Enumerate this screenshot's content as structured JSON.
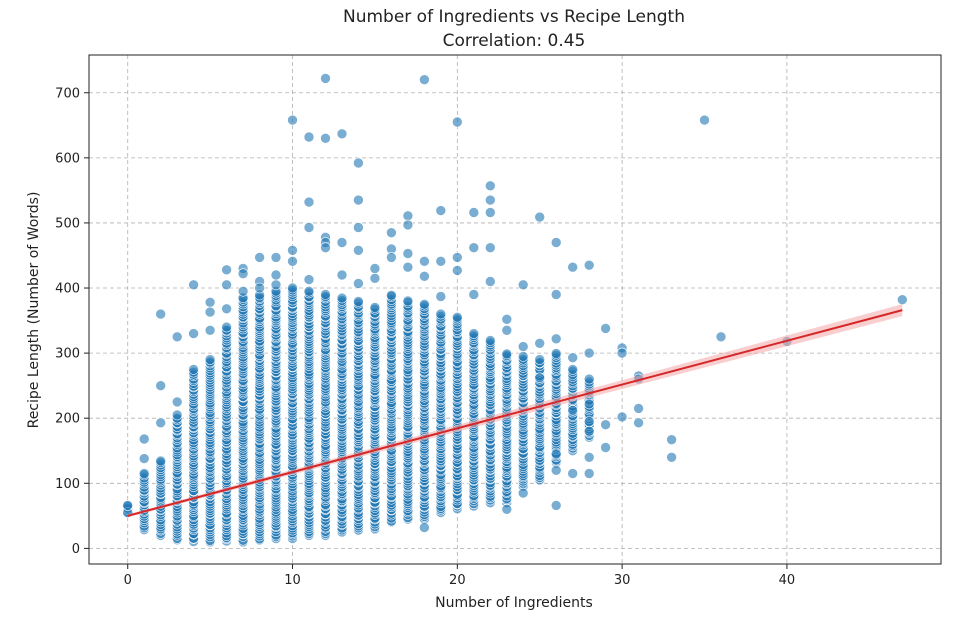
{
  "chart_data": {
    "type": "scatter",
    "title": "Number of Ingredients vs Recipe Length",
    "subtitle": "Correlation: 0.45",
    "xlabel": "Number of Ingredients",
    "ylabel": "Recipe Length (Number of Words)",
    "xlim": [
      -2.35,
      49.35
    ],
    "ylim": [
      -24,
      758
    ],
    "x_ticks": [
      0,
      10,
      20,
      30,
      40
    ],
    "y_ticks": [
      0,
      100,
      200,
      300,
      400,
      500,
      600,
      700
    ],
    "grid": true,
    "colors": {
      "points": "#1f77b4",
      "edge": "#ffffff",
      "trend": "#d62728",
      "band": "#f4a6a6",
      "grid": "#b0b0b0"
    },
    "trend_line": {
      "x": [
        0,
        47
      ],
      "y": [
        50,
        366
      ]
    },
    "dense_bands": [
      {
        "x": 0,
        "min": 55,
        "max": 66
      },
      {
        "x": 1,
        "min": 28,
        "max": 115
      },
      {
        "x": 2,
        "min": 20,
        "max": 135
      },
      {
        "x": 3,
        "min": 12,
        "max": 205
      },
      {
        "x": 4,
        "min": 10,
        "max": 275
      },
      {
        "x": 5,
        "min": 10,
        "max": 290
      },
      {
        "x": 6,
        "min": 10,
        "max": 340
      },
      {
        "x": 7,
        "min": 10,
        "max": 385
      },
      {
        "x": 8,
        "min": 12,
        "max": 390
      },
      {
        "x": 9,
        "min": 15,
        "max": 395
      },
      {
        "x": 10,
        "min": 15,
        "max": 400
      },
      {
        "x": 11,
        "min": 20,
        "max": 395
      },
      {
        "x": 12,
        "min": 20,
        "max": 390
      },
      {
        "x": 13,
        "min": 25,
        "max": 385
      },
      {
        "x": 14,
        "min": 28,
        "max": 380
      },
      {
        "x": 15,
        "min": 30,
        "max": 370
      },
      {
        "x": 16,
        "min": 40,
        "max": 390
      },
      {
        "x": 17,
        "min": 45,
        "max": 380
      },
      {
        "x": 18,
        "min": 45,
        "max": 375
      },
      {
        "x": 19,
        "min": 55,
        "max": 360
      },
      {
        "x": 20,
        "min": 60,
        "max": 355
      },
      {
        "x": 21,
        "min": 65,
        "max": 330
      },
      {
        "x": 22,
        "min": 70,
        "max": 320
      },
      {
        "x": 23,
        "min": 70,
        "max": 300
      },
      {
        "x": 24,
        "min": 95,
        "max": 295
      },
      {
        "x": 25,
        "min": 105,
        "max": 290
      },
      {
        "x": 26,
        "min": 130,
        "max": 300
      },
      {
        "x": 27,
        "min": 150,
        "max": 275
      },
      {
        "x": 28,
        "min": 170,
        "max": 260
      }
    ],
    "sparse_points": [
      [
        0,
        55
      ],
      [
        0,
        66
      ],
      [
        1,
        138
      ],
      [
        1,
        168
      ],
      [
        2,
        250
      ],
      [
        2,
        360
      ],
      [
        2,
        193
      ],
      [
        3,
        325
      ],
      [
        3,
        225
      ],
      [
        4,
        405
      ],
      [
        4,
        330
      ],
      [
        5,
        378
      ],
      [
        5,
        363
      ],
      [
        5,
        335
      ],
      [
        6,
        428
      ],
      [
        6,
        405
      ],
      [
        6,
        368
      ],
      [
        7,
        430
      ],
      [
        7,
        422
      ],
      [
        7,
        395
      ],
      [
        8,
        447
      ],
      [
        8,
        410
      ],
      [
        8,
        400
      ],
      [
        9,
        447
      ],
      [
        9,
        405
      ],
      [
        9,
        420
      ],
      [
        10,
        658
      ],
      [
        10,
        458
      ],
      [
        10,
        441
      ],
      [
        11,
        632
      ],
      [
        11,
        532
      ],
      [
        11,
        493
      ],
      [
        11,
        413
      ],
      [
        12,
        722
      ],
      [
        12,
        630
      ],
      [
        12,
        478
      ],
      [
        12,
        470
      ],
      [
        12,
        462
      ],
      [
        13,
        637
      ],
      [
        13,
        470
      ],
      [
        13,
        420
      ],
      [
        14,
        592
      ],
      [
        14,
        535
      ],
      [
        14,
        493
      ],
      [
        14,
        458
      ],
      [
        14,
        407
      ],
      [
        15,
        430
      ],
      [
        15,
        415
      ],
      [
        16,
        485
      ],
      [
        16,
        460
      ],
      [
        16,
        447
      ],
      [
        17,
        511
      ],
      [
        17,
        497
      ],
      [
        17,
        453
      ],
      [
        17,
        432
      ],
      [
        18,
        720
      ],
      [
        18,
        441
      ],
      [
        18,
        418
      ],
      [
        18,
        32
      ],
      [
        19,
        519
      ],
      [
        19,
        441
      ],
      [
        19,
        387
      ],
      [
        20,
        655
      ],
      [
        20,
        447
      ],
      [
        20,
        427
      ],
      [
        21,
        516
      ],
      [
        21,
        462
      ],
      [
        21,
        390
      ],
      [
        22,
        557
      ],
      [
        22,
        535
      ],
      [
        22,
        516
      ],
      [
        22,
        462
      ],
      [
        22,
        410
      ],
      [
        23,
        352
      ],
      [
        23,
        335
      ],
      [
        23,
        60
      ],
      [
        24,
        405
      ],
      [
        24,
        310
      ],
      [
        24,
        85
      ],
      [
        25,
        509
      ],
      [
        25,
        315
      ],
      [
        25,
        262
      ],
      [
        26,
        470
      ],
      [
        26,
        390
      ],
      [
        26,
        322
      ],
      [
        26,
        66
      ],
      [
        26,
        145
      ],
      [
        26,
        120
      ],
      [
        27,
        432
      ],
      [
        27,
        293
      ],
      [
        27,
        115
      ],
      [
        27,
        212
      ],
      [
        28,
        435
      ],
      [
        28,
        300
      ],
      [
        28,
        222
      ],
      [
        28,
        195
      ],
      [
        28,
        180
      ],
      [
        28,
        140
      ],
      [
        28,
        115
      ],
      [
        29,
        338
      ],
      [
        29,
        190
      ],
      [
        29,
        155
      ],
      [
        30,
        308
      ],
      [
        30,
        300
      ],
      [
        30,
        202
      ],
      [
        31,
        265
      ],
      [
        31,
        260
      ],
      [
        31,
        215
      ],
      [
        31,
        193
      ],
      [
        33,
        167
      ],
      [
        33,
        140
      ],
      [
        35,
        658
      ],
      [
        36,
        325
      ],
      [
        40,
        318
      ],
      [
        47,
        382
      ]
    ]
  }
}
